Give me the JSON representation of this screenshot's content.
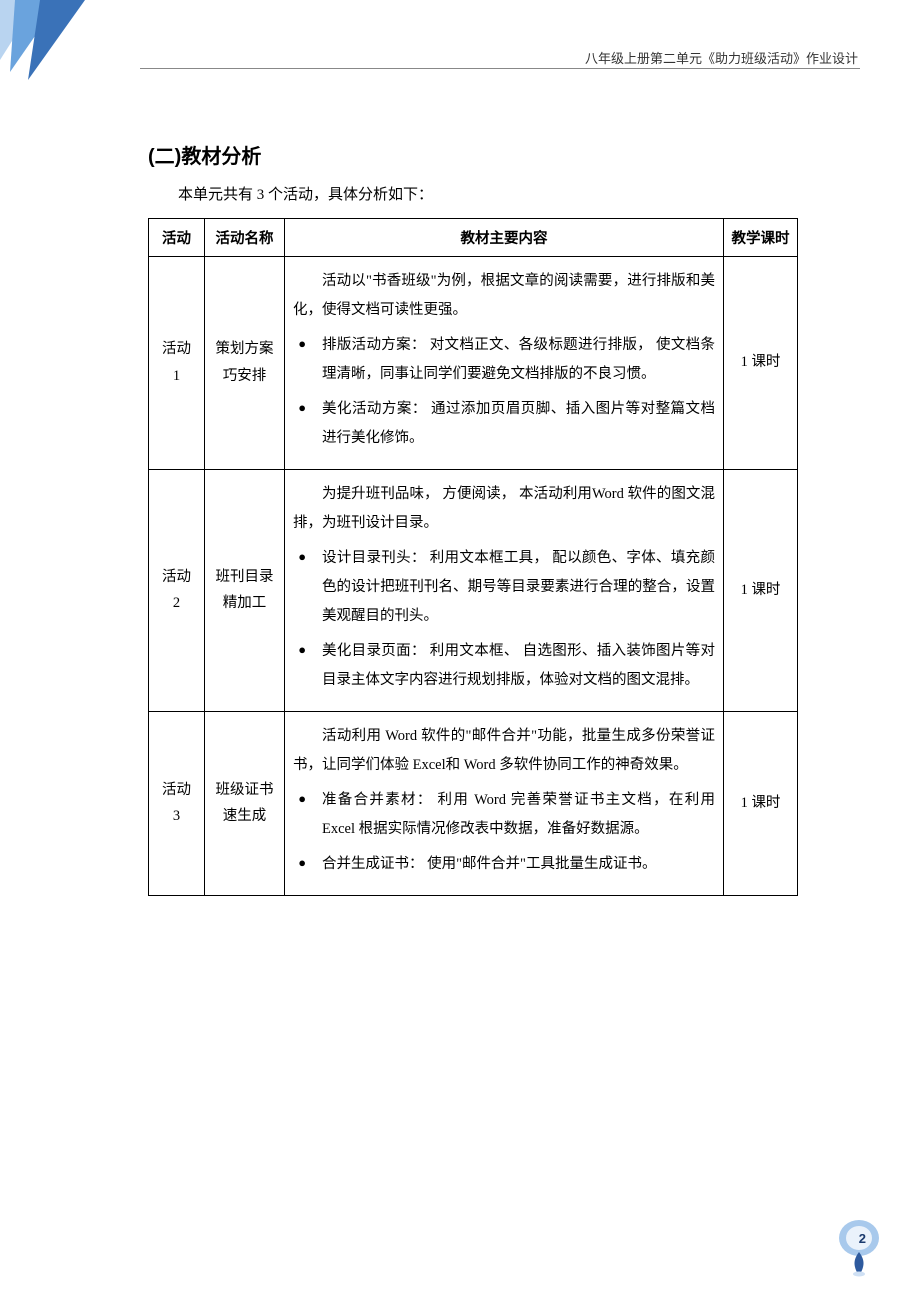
{
  "header": {
    "running_title": "八年级上册第二单元《助力班级活动》作业设计"
  },
  "section": {
    "title": "(二)教材分析",
    "intro": "本单元共有 3 个活动，具体分析如下："
  },
  "table": {
    "headers": {
      "activity": "活动",
      "name": "活动名称",
      "content": "教材主要内容",
      "time": "教学课时"
    },
    "rows": [
      {
        "activity": "活动\n1",
        "name": "策划方案\n巧安排",
        "intro": "活动以\"书香班级\"为例，根据文章的阅读需要，进行排版和美化，使得文档可读性更强。",
        "bullets": [
          {
            "label": "排版活动方案：",
            "text": " 对文档正文、各级标题进行排版， 使文档条理清晰，同事让同学们要避免文档排版的不良习惯。"
          },
          {
            "label": "美化活动方案：",
            "text": " 通过添加页眉页脚、插入图片等对整篇文档进行美化修饰。"
          }
        ],
        "time": "1 课时"
      },
      {
        "activity": "活动\n2",
        "name": "班刊目录\n精加工",
        "intro": "为提升班刊品味， 方便阅读， 本活动利用Word 软件的图文混排，为班刊设计目录。",
        "bullets": [
          {
            "label": "设计目录刊头：",
            "text": " 利用文本框工具， 配以颜色、字体、填充颜色的设计把班刊刊名、期号等目录要素进行合理的整合，设置美观醒目的刊头。"
          },
          {
            "label": "美化目录页面：",
            "text": " 利用文本框、 自选图形、插入装饰图片等对目录主体文字内容进行规划排版，体验对文档的图文混排。"
          }
        ],
        "time": "1 课时"
      },
      {
        "activity": "活动\n3",
        "name": "班级证书\n速生成",
        "intro": "活动利用 Word 软件的\"邮件合并\"功能，批量生成多份荣誉证书，让同学们体验 Excel和 Word 多软件协同工作的神奇效果。",
        "bullets": [
          {
            "label": "准备合并素材：",
            "text": " 利用 Word 完善荣誉证书主文档，在利用 Excel 根据实际情况修改表中数据，准备好数据源。"
          },
          {
            "label": "合并生成证书：",
            "text": " 使用\"邮件合并\"工具批量生成证书。"
          }
        ],
        "time": "1 课时"
      }
    ]
  },
  "page": {
    "number": "2"
  },
  "colors": {
    "corner_light": "#b9d4f0",
    "corner_mid": "#6aa3dd",
    "corner_dark": "#3a72b8",
    "marker_outer": "#a8c9ec",
    "marker_inner": "#4a86c7",
    "marker_pin": "#2e5a9e"
  }
}
